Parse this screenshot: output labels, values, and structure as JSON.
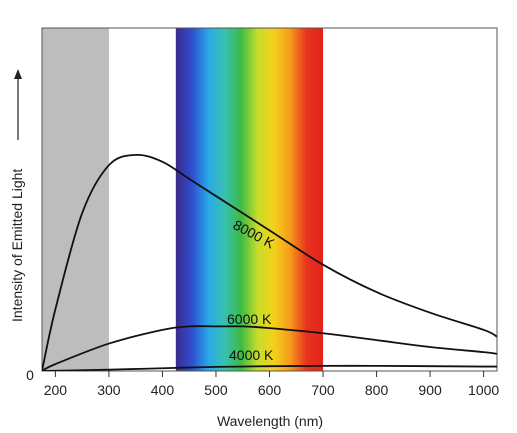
{
  "chart_data": {
    "type": "line",
    "title": "",
    "xlabel": "Wavelength (nm)",
    "ylabel": "Intensity of Emitted Light",
    "y_origin_label": "0",
    "xlim": [
      175,
      1025
    ],
    "ylim": [
      0,
      1
    ],
    "x_ticks": [
      200,
      300,
      400,
      500,
      600,
      700,
      800,
      900,
      1000
    ],
    "grid": false,
    "legend": "none",
    "shaded_regions": [
      {
        "x_start": 175,
        "x_end": 300,
        "color": "#bdbdbd"
      },
      {
        "x_start": 425,
        "x_end": 700,
        "fill": "visible-spectrum"
      }
    ],
    "spectrum_colors": [
      "#3a2a8a",
      "#2f4fd0",
      "#2aa9e8",
      "#38c0b0",
      "#3dbb45",
      "#c8dc2a",
      "#f2d21a",
      "#f59a1c",
      "#e8321e",
      "#e22418"
    ],
    "series": [
      {
        "name": "8000 K",
        "x": [
          175,
          200,
          250,
          300,
          350,
          400,
          450,
          500,
          600,
          700,
          800,
          900,
          1000,
          1025
        ],
        "y": [
          0.0,
          0.18,
          0.46,
          0.6,
          0.63,
          0.61,
          0.56,
          0.51,
          0.41,
          0.31,
          0.23,
          0.17,
          0.12,
          0.1
        ]
      },
      {
        "name": "6000 K",
        "x": [
          175,
          200,
          300,
          400,
          450,
          500,
          550,
          600,
          700,
          800,
          900,
          1000,
          1025
        ],
        "y": [
          0.0,
          0.02,
          0.08,
          0.12,
          0.13,
          0.13,
          0.13,
          0.125,
          0.11,
          0.09,
          0.07,
          0.055,
          0.05
        ]
      },
      {
        "name": "4000 K",
        "x": [
          175,
          300,
          400,
          500,
          600,
          700,
          800,
          900,
          1000,
          1025
        ],
        "y": [
          0.0,
          0.004,
          0.008,
          0.012,
          0.014,
          0.015,
          0.015,
          0.014,
          0.013,
          0.013
        ]
      }
    ]
  }
}
